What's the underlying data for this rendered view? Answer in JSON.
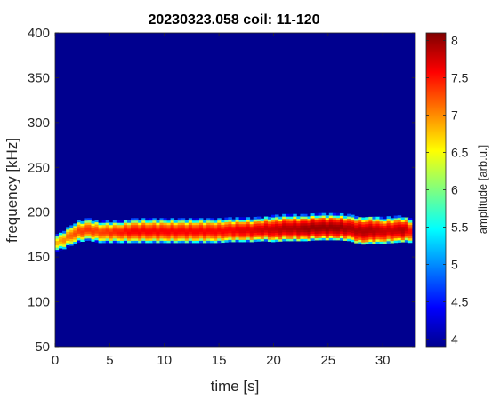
{
  "chart_data": {
    "type": "heatmap",
    "title": "20230323.058 coil: 11-120",
    "xlabel": "time [s]",
    "ylabel": "frequency [kHz]",
    "xlim": [
      0,
      33
    ],
    "ylim": [
      50,
      400
    ],
    "xticks": [
      "0",
      "5",
      "10",
      "15",
      "20",
      "25",
      "30"
    ],
    "yticks": [
      "50",
      "100",
      "150",
      "200",
      "250",
      "300",
      "350",
      "400"
    ],
    "colormap": "jet",
    "background_color": "#00008f",
    "colorbar": {
      "label": "amplitude [arb.u.]",
      "range": [
        3.9,
        8.1
      ],
      "ticks": [
        "4",
        "4.5",
        "5",
        "5.5",
        "6",
        "6.5",
        "7",
        "7.5",
        "8"
      ]
    },
    "mode_band": {
      "time": [
        0,
        1,
        2,
        3,
        4,
        5,
        6,
        7,
        8,
        9,
        10,
        11,
        12,
        13,
        14,
        15,
        16,
        17,
        18,
        19,
        20,
        21,
        22,
        23,
        24,
        25,
        26,
        27,
        28,
        29,
        30,
        31,
        32,
        32.6
      ],
      "center_freq_kHz": [
        165,
        171,
        178,
        181,
        178,
        178,
        178,
        179,
        179,
        179,
        179,
        179,
        179,
        179,
        179,
        179,
        180,
        180,
        180,
        181,
        181,
        182,
        182,
        182,
        183,
        183,
        183,
        182,
        179,
        180,
        179,
        180,
        181,
        179
      ],
      "half_width_kHz": [
        6,
        7,
        8,
        8,
        8,
        8,
        8,
        9,
        9,
        9,
        9,
        9,
        9,
        9,
        9,
        9,
        9,
        9,
        9,
        9,
        10,
        10,
        10,
        10,
        10,
        10,
        10,
        10,
        11,
        11,
        10,
        10,
        10,
        9
      ],
      "peak_amplitude": [
        6.8,
        7.1,
        7.3,
        7.4,
        7.3,
        7.4,
        7.5,
        7.6,
        7.6,
        7.6,
        7.6,
        7.6,
        7.6,
        7.6,
        7.6,
        7.6,
        7.6,
        7.7,
        7.7,
        7.8,
        7.8,
        7.9,
        7.9,
        8.0,
        8.0,
        8.0,
        8.0,
        7.9,
        7.9,
        7.9,
        7.8,
        7.8,
        7.9,
        7.5
      ]
    }
  }
}
